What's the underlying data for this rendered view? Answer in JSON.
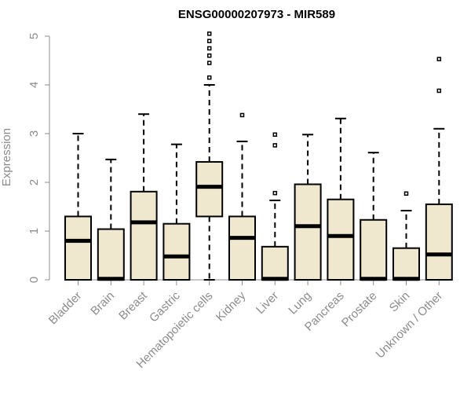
{
  "chart_data": {
    "type": "box",
    "title": "ENSG00000207973 - MIR589",
    "xlabel": "",
    "ylabel": "Expression",
    "ylim": [
      0,
      5
    ],
    "yticks": [
      "0",
      "1",
      "2",
      "3",
      "4",
      "5"
    ],
    "grid": false,
    "legend": "none",
    "colors": {
      "box_fill": "#efe8cf",
      "stroke": "#000000",
      "axis_text": "#8c8c8c"
    },
    "categories": [
      "Bladder",
      "Brain",
      "Breast",
      "Gastric",
      "Hematopoietic cells",
      "Kidney",
      "Liver",
      "Lung",
      "Pancreas",
      "Prostate",
      "Skin",
      "Unknown / Other"
    ],
    "boxes": [
      {
        "category": "Bladder",
        "min": 0,
        "q1": 0,
        "median": 0.8,
        "q3": 1.3,
        "max": 3.0,
        "outliers": []
      },
      {
        "category": "Brain",
        "min": 0,
        "q1": 0,
        "median": 0.02,
        "q3": 1.04,
        "max": 2.47,
        "outliers": []
      },
      {
        "category": "Breast",
        "min": 0,
        "q1": 0,
        "median": 1.18,
        "q3": 1.81,
        "max": 3.4,
        "outliers": []
      },
      {
        "category": "Gastric",
        "min": 0,
        "q1": 0,
        "median": 0.48,
        "q3": 1.15,
        "max": 2.78,
        "outliers": []
      },
      {
        "category": "Hematopoietic cells",
        "min": 0,
        "q1": 1.3,
        "median": 1.91,
        "q3": 2.42,
        "max": 4.0,
        "outliers": [
          4.15,
          4.45,
          4.6,
          4.75,
          4.9,
          5.05
        ]
      },
      {
        "category": "Kidney",
        "min": 0,
        "q1": 0,
        "median": 0.86,
        "q3": 1.3,
        "max": 2.84,
        "outliers": [
          3.38
        ]
      },
      {
        "category": "Liver",
        "min": 0,
        "q1": 0,
        "median": 0.02,
        "q3": 0.68,
        "max": 1.63,
        "outliers": [
          1.78,
          2.76,
          2.98
        ]
      },
      {
        "category": "Lung",
        "min": 0,
        "q1": 0,
        "median": 1.1,
        "q3": 1.96,
        "max": 2.98,
        "outliers": []
      },
      {
        "category": "Pancreas",
        "min": 0,
        "q1": 0,
        "median": 0.9,
        "q3": 1.65,
        "max": 3.31,
        "outliers": []
      },
      {
        "category": "Prostate",
        "min": 0,
        "q1": 0,
        "median": 0.02,
        "q3": 1.23,
        "max": 2.61,
        "outliers": []
      },
      {
        "category": "Skin",
        "min": 0,
        "q1": 0,
        "median": 0.02,
        "q3": 0.65,
        "max": 1.42,
        "outliers": [
          1.77
        ]
      },
      {
        "category": "Unknown / Other",
        "min": 0,
        "q1": 0,
        "median": 0.52,
        "q3": 1.55,
        "max": 3.1,
        "outliers": [
          3.88,
          4.53
        ]
      }
    ]
  }
}
